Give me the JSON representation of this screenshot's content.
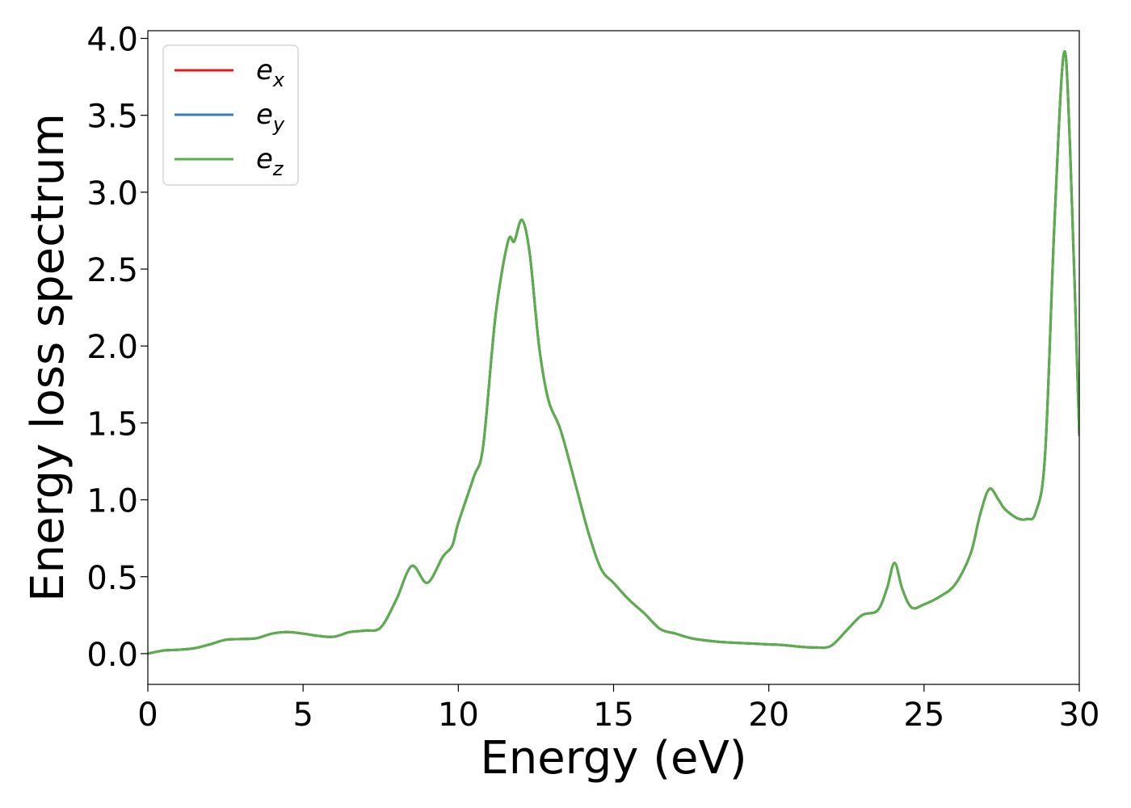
{
  "chart_data": {
    "type": "line",
    "title": "",
    "xlabel": "Energy (eV)",
    "ylabel": "Energy loss spectrum",
    "xlim": [
      0,
      30
    ],
    "ylim": [
      -0.2,
      4.05
    ],
    "xticks": [
      0,
      5,
      10,
      15,
      20,
      25,
      30
    ],
    "yticks": [
      0.0,
      0.5,
      1.0,
      1.5,
      2.0,
      2.5,
      3.0,
      3.5,
      4.0
    ],
    "xtick_labels": [
      "0",
      "5",
      "10",
      "15",
      "20",
      "25",
      "30"
    ],
    "ytick_labels": [
      "0.0",
      "0.5",
      "1.0",
      "1.5",
      "2.0",
      "2.5",
      "3.0",
      "3.5",
      "4.0"
    ],
    "grid": false,
    "legend_position": "top-left",
    "series": [
      {
        "name": "e_x",
        "legend_base": "e",
        "legend_sub": "x",
        "color": "#e41a1c",
        "points": [
          [
            0,
            0.0
          ],
          [
            0.5,
            0.02
          ],
          [
            1,
            0.025
          ],
          [
            1.5,
            0.035
          ],
          [
            2,
            0.06
          ],
          [
            2.5,
            0.09
          ],
          [
            3,
            0.095
          ],
          [
            3.5,
            0.1
          ],
          [
            4,
            0.13
          ],
          [
            4.5,
            0.14
          ],
          [
            5,
            0.13
          ],
          [
            5.5,
            0.115
          ],
          [
            6,
            0.11
          ],
          [
            6.5,
            0.14
          ],
          [
            7,
            0.15
          ],
          [
            7.5,
            0.17
          ],
          [
            8,
            0.35
          ],
          [
            8.5,
            0.57
          ],
          [
            9,
            0.46
          ],
          [
            9.5,
            0.63
          ],
          [
            9.8,
            0.7
          ],
          [
            10,
            0.85
          ],
          [
            10.5,
            1.15
          ],
          [
            10.8,
            1.35
          ],
          [
            11.2,
            2.2
          ],
          [
            11.6,
            2.68
          ],
          [
            11.8,
            2.68
          ],
          [
            12.05,
            2.82
          ],
          [
            12.3,
            2.6
          ],
          [
            12.6,
            2.0
          ],
          [
            12.9,
            1.65
          ],
          [
            13.3,
            1.45
          ],
          [
            13.8,
            1.08
          ],
          [
            14.2,
            0.78
          ],
          [
            14.6,
            0.55
          ],
          [
            15,
            0.46
          ],
          [
            15.5,
            0.35
          ],
          [
            16,
            0.26
          ],
          [
            16.5,
            0.16
          ],
          [
            17,
            0.13
          ],
          [
            17.5,
            0.1
          ],
          [
            18,
            0.085
          ],
          [
            18.5,
            0.075
          ],
          [
            19,
            0.07
          ],
          [
            19.5,
            0.065
          ],
          [
            20,
            0.06
          ],
          [
            20.5,
            0.055
          ],
          [
            21,
            0.045
          ],
          [
            21.5,
            0.04
          ],
          [
            22,
            0.05
          ],
          [
            22.5,
            0.15
          ],
          [
            23,
            0.25
          ],
          [
            23.5,
            0.28
          ],
          [
            23.8,
            0.42
          ],
          [
            24.05,
            0.59
          ],
          [
            24.3,
            0.42
          ],
          [
            24.6,
            0.3
          ],
          [
            25,
            0.32
          ],
          [
            25.5,
            0.37
          ],
          [
            26,
            0.45
          ],
          [
            26.5,
            0.65
          ],
          [
            26.8,
            0.9
          ],
          [
            27.1,
            1.07
          ],
          [
            27.4,
            1.0
          ],
          [
            27.6,
            0.94
          ],
          [
            28,
            0.88
          ],
          [
            28.3,
            0.875
          ],
          [
            28.6,
            0.92
          ],
          [
            28.9,
            1.3
          ],
          [
            29.2,
            2.8
          ],
          [
            29.5,
            3.9
          ],
          [
            29.7,
            3.3
          ],
          [
            30,
            1.42
          ]
        ]
      },
      {
        "name": "e_y",
        "legend_base": "e",
        "legend_sub": "y",
        "color": "#377eb8",
        "points": [
          [
            0,
            0.0
          ],
          [
            0.5,
            0.02
          ],
          [
            1,
            0.025
          ],
          [
            1.5,
            0.035
          ],
          [
            2,
            0.06
          ],
          [
            2.5,
            0.09
          ],
          [
            3,
            0.095
          ],
          [
            3.5,
            0.1
          ],
          [
            4,
            0.13
          ],
          [
            4.5,
            0.14
          ],
          [
            5,
            0.13
          ],
          [
            5.5,
            0.115
          ],
          [
            6,
            0.11
          ],
          [
            6.5,
            0.14
          ],
          [
            7,
            0.15
          ],
          [
            7.5,
            0.17
          ],
          [
            8,
            0.35
          ],
          [
            8.5,
            0.57
          ],
          [
            9,
            0.46
          ],
          [
            9.5,
            0.63
          ],
          [
            9.8,
            0.7
          ],
          [
            10,
            0.85
          ],
          [
            10.5,
            1.15
          ],
          [
            10.8,
            1.35
          ],
          [
            11.2,
            2.2
          ],
          [
            11.6,
            2.68
          ],
          [
            11.8,
            2.68
          ],
          [
            12.05,
            2.82
          ],
          [
            12.3,
            2.6
          ],
          [
            12.6,
            2.0
          ],
          [
            12.9,
            1.65
          ],
          [
            13.3,
            1.45
          ],
          [
            13.8,
            1.08
          ],
          [
            14.2,
            0.78
          ],
          [
            14.6,
            0.55
          ],
          [
            15,
            0.46
          ],
          [
            15.5,
            0.35
          ],
          [
            16,
            0.26
          ],
          [
            16.5,
            0.16
          ],
          [
            17,
            0.13
          ],
          [
            17.5,
            0.1
          ],
          [
            18,
            0.085
          ],
          [
            18.5,
            0.075
          ],
          [
            19,
            0.07
          ],
          [
            19.5,
            0.065
          ],
          [
            20,
            0.06
          ],
          [
            20.5,
            0.055
          ],
          [
            21,
            0.045
          ],
          [
            21.5,
            0.04
          ],
          [
            22,
            0.05
          ],
          [
            22.5,
            0.15
          ],
          [
            23,
            0.25
          ],
          [
            23.5,
            0.28
          ],
          [
            23.8,
            0.42
          ],
          [
            24.05,
            0.59
          ],
          [
            24.3,
            0.42
          ],
          [
            24.6,
            0.3
          ],
          [
            25,
            0.32
          ],
          [
            25.5,
            0.37
          ],
          [
            26,
            0.45
          ],
          [
            26.5,
            0.65
          ],
          [
            26.8,
            0.9
          ],
          [
            27.1,
            1.07
          ],
          [
            27.4,
            1.0
          ],
          [
            27.6,
            0.94
          ],
          [
            28,
            0.88
          ],
          [
            28.3,
            0.875
          ],
          [
            28.6,
            0.92
          ],
          [
            28.9,
            1.3
          ],
          [
            29.2,
            2.8
          ],
          [
            29.5,
            3.9
          ],
          [
            29.7,
            3.3
          ],
          [
            30,
            1.42
          ]
        ]
      },
      {
        "name": "e_z",
        "legend_base": "e",
        "legend_sub": "z",
        "color": "#5aaf4a",
        "points": [
          [
            0,
            0.0
          ],
          [
            0.5,
            0.02
          ],
          [
            1,
            0.025
          ],
          [
            1.5,
            0.035
          ],
          [
            2,
            0.06
          ],
          [
            2.5,
            0.09
          ],
          [
            3,
            0.095
          ],
          [
            3.5,
            0.1
          ],
          [
            4,
            0.13
          ],
          [
            4.5,
            0.14
          ],
          [
            5,
            0.13
          ],
          [
            5.5,
            0.115
          ],
          [
            6,
            0.11
          ],
          [
            6.5,
            0.14
          ],
          [
            7,
            0.15
          ],
          [
            7.5,
            0.17
          ],
          [
            8,
            0.35
          ],
          [
            8.5,
            0.57
          ],
          [
            9,
            0.46
          ],
          [
            9.5,
            0.63
          ],
          [
            9.8,
            0.7
          ],
          [
            10,
            0.85
          ],
          [
            10.5,
            1.15
          ],
          [
            10.8,
            1.35
          ],
          [
            11.2,
            2.2
          ],
          [
            11.6,
            2.68
          ],
          [
            11.8,
            2.68
          ],
          [
            12.05,
            2.82
          ],
          [
            12.3,
            2.6
          ],
          [
            12.6,
            2.0
          ],
          [
            12.9,
            1.65
          ],
          [
            13.3,
            1.45
          ],
          [
            13.8,
            1.08
          ],
          [
            14.2,
            0.78
          ],
          [
            14.6,
            0.55
          ],
          [
            15,
            0.46
          ],
          [
            15.5,
            0.35
          ],
          [
            16,
            0.26
          ],
          [
            16.5,
            0.16
          ],
          [
            17,
            0.13
          ],
          [
            17.5,
            0.1
          ],
          [
            18,
            0.085
          ],
          [
            18.5,
            0.075
          ],
          [
            19,
            0.07
          ],
          [
            19.5,
            0.065
          ],
          [
            20,
            0.06
          ],
          [
            20.5,
            0.055
          ],
          [
            21,
            0.045
          ],
          [
            21.5,
            0.04
          ],
          [
            22,
            0.05
          ],
          [
            22.5,
            0.15
          ],
          [
            23,
            0.25
          ],
          [
            23.5,
            0.28
          ],
          [
            23.8,
            0.42
          ],
          [
            24.05,
            0.59
          ],
          [
            24.3,
            0.42
          ],
          [
            24.6,
            0.3
          ],
          [
            25,
            0.32
          ],
          [
            25.5,
            0.37
          ],
          [
            26,
            0.45
          ],
          [
            26.5,
            0.65
          ],
          [
            26.8,
            0.9
          ],
          [
            27.1,
            1.07
          ],
          [
            27.4,
            1.0
          ],
          [
            27.6,
            0.94
          ],
          [
            28,
            0.88
          ],
          [
            28.3,
            0.875
          ],
          [
            28.6,
            0.92
          ],
          [
            28.9,
            1.3
          ],
          [
            29.2,
            2.8
          ],
          [
            29.5,
            3.9
          ],
          [
            29.7,
            3.3
          ],
          [
            30,
            1.42
          ]
        ]
      }
    ]
  }
}
